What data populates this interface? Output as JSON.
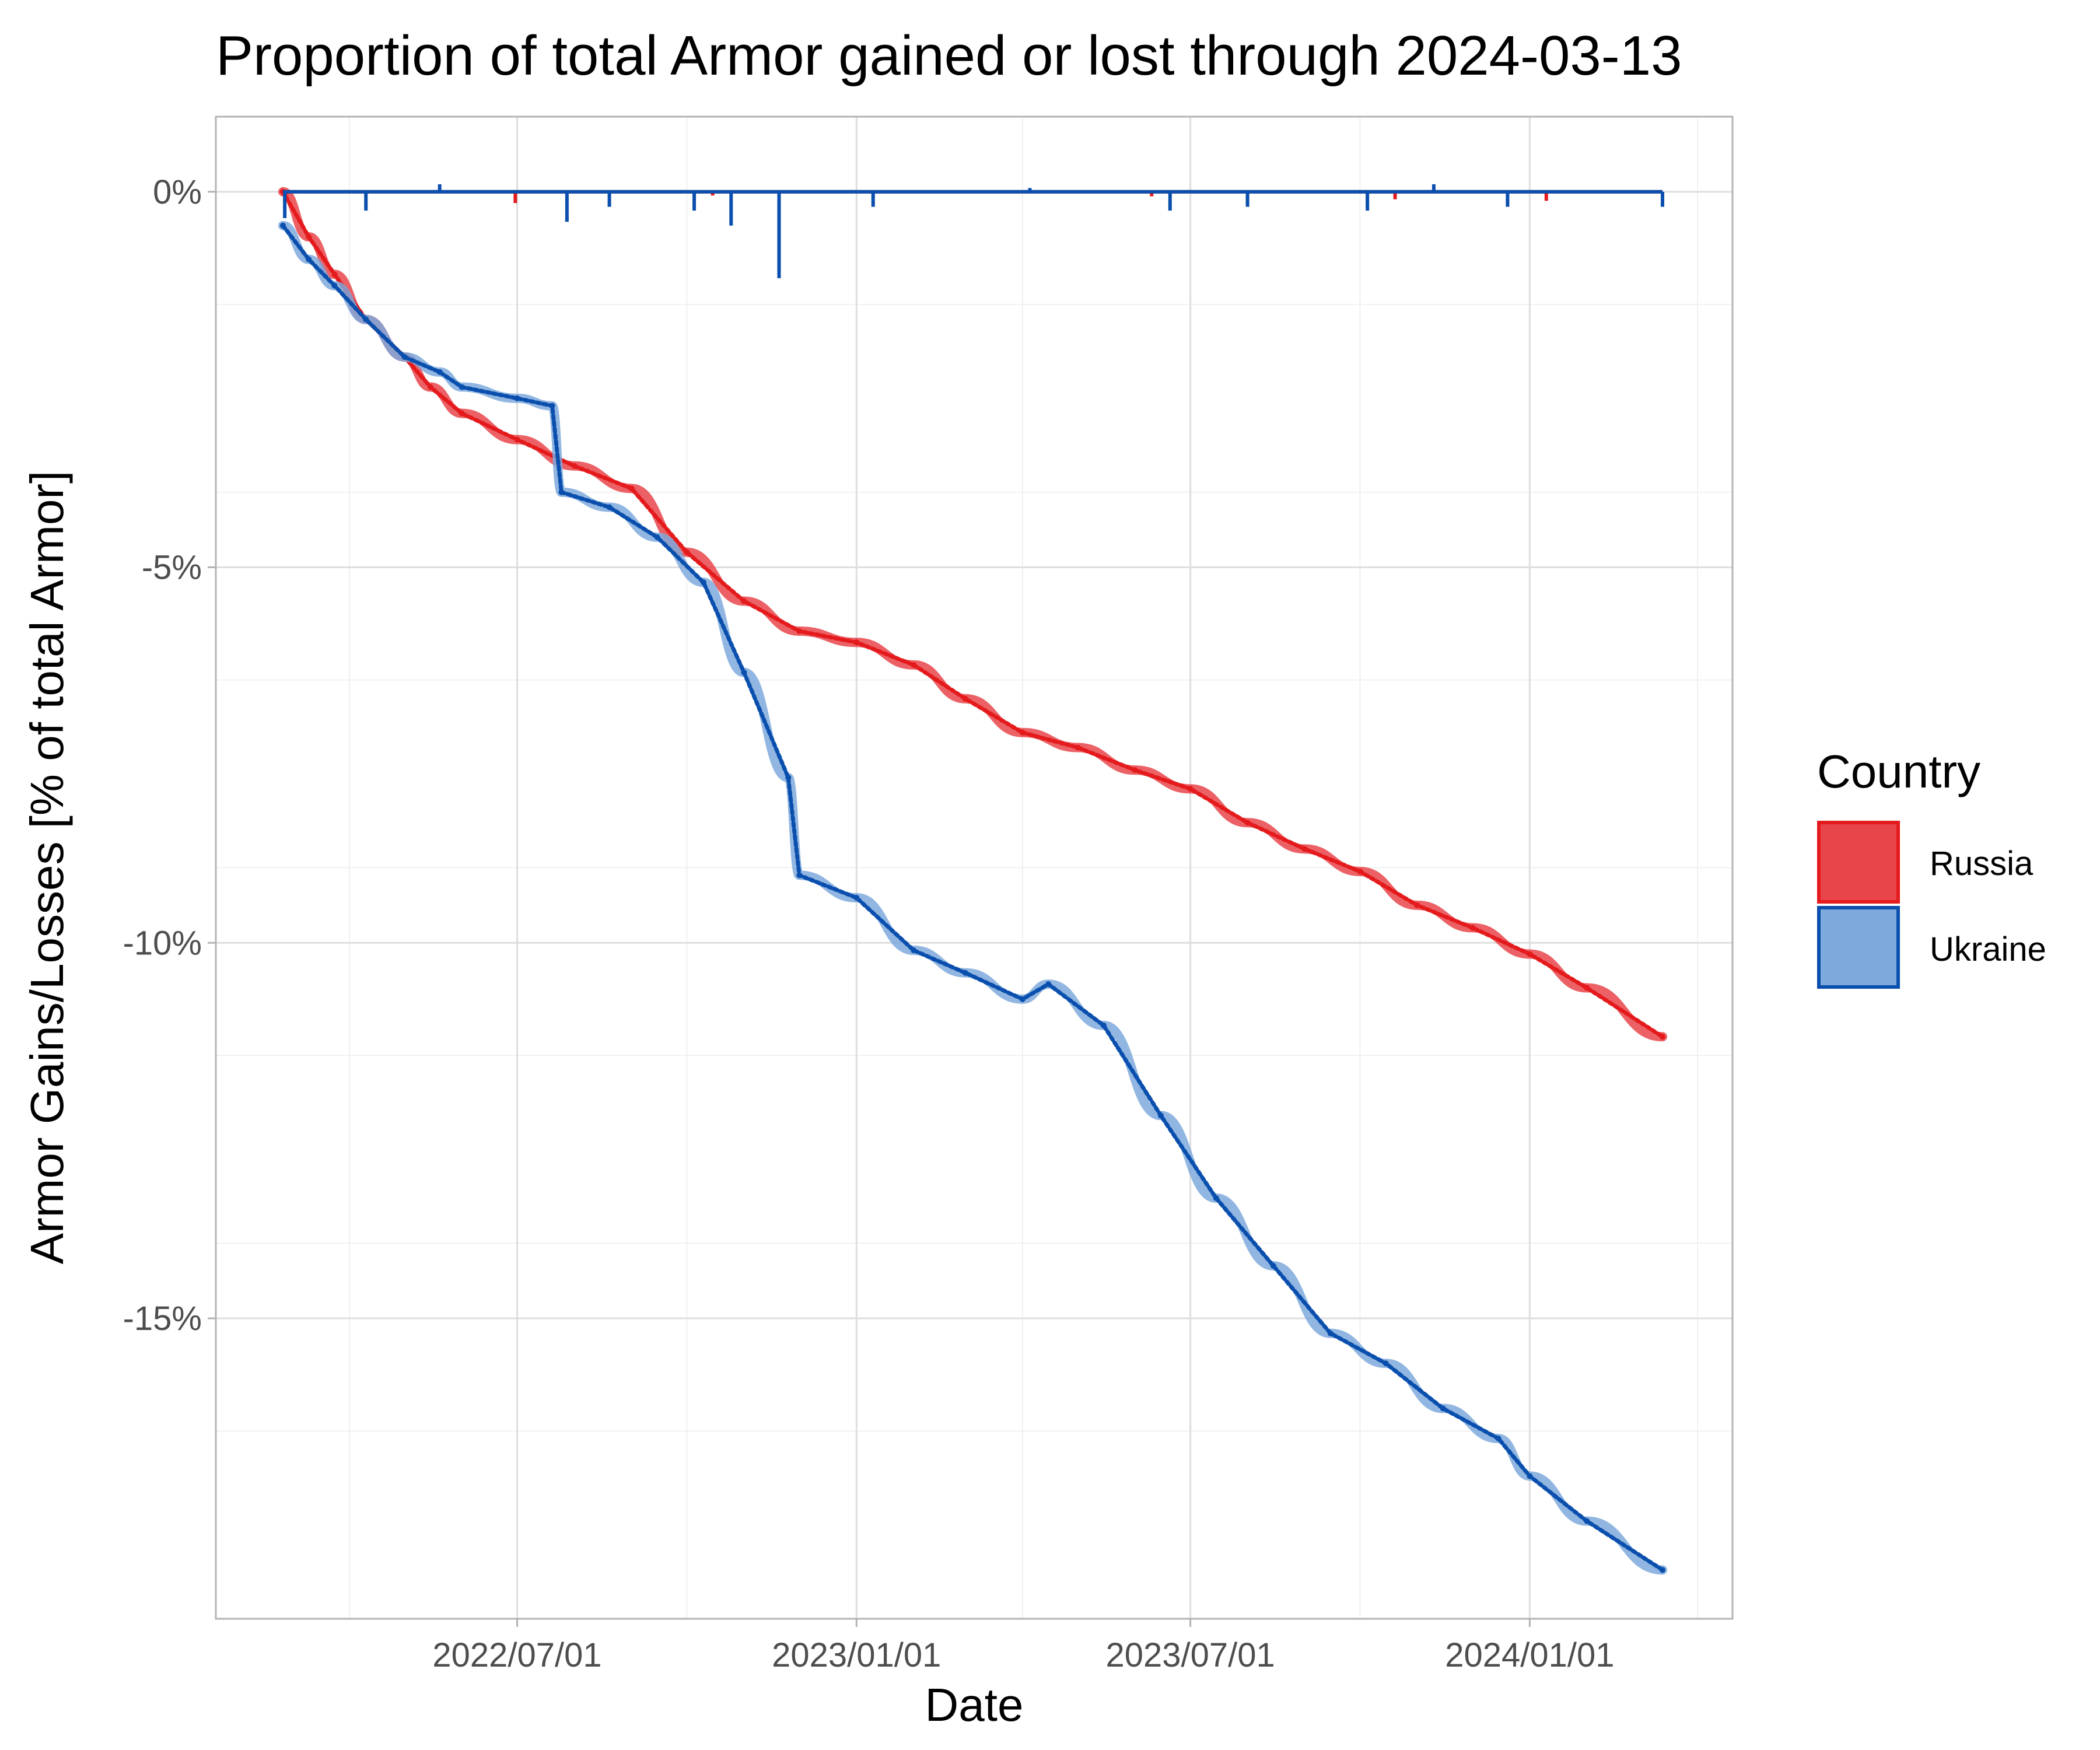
{
  "chart_data": {
    "type": "line",
    "title": "Proportion of total Armor gained or lost through 2024-03-13",
    "xlabel": "Date",
    "ylabel": "Armor Gains/Losses [% of total Armor]",
    "xlim": [
      "2022-02-24",
      "2024-03-13"
    ],
    "ylim": [
      -19.0,
      1.0
    ],
    "x_ticks": [
      "2022/07/01",
      "2023/01/01",
      "2023/07/01",
      "2024/01/01"
    ],
    "y_ticks": [
      {
        "value": 0,
        "label": "0%"
      },
      {
        "value": -5,
        "label": "-5%"
      },
      {
        "value": -10,
        "label": "-10%"
      },
      {
        "value": -15,
        "label": "-15%"
      }
    ],
    "grid": true,
    "legend": {
      "title": "Country",
      "position": "right"
    },
    "series": [
      {
        "name": "Russia",
        "color": "#e41a1c",
        "smooth_color": "#e8454a",
        "cumulative": [
          {
            "x": "2022-02-24",
            "y": 0.0
          },
          {
            "x": "2022-03-10",
            "y": -0.6
          },
          {
            "x": "2022-03-24",
            "y": -1.1
          },
          {
            "x": "2022-04-10",
            "y": -1.7
          },
          {
            "x": "2022-05-01",
            "y": -2.2
          },
          {
            "x": "2022-05-15",
            "y": -2.6
          },
          {
            "x": "2022-06-01",
            "y": -2.95
          },
          {
            "x": "2022-07-01",
            "y": -3.3
          },
          {
            "x": "2022-08-01",
            "y": -3.65
          },
          {
            "x": "2022-09-01",
            "y": -3.95
          },
          {
            "x": "2022-10-01",
            "y": -4.8
          },
          {
            "x": "2022-11-01",
            "y": -5.45
          },
          {
            "x": "2022-12-01",
            "y": -5.85
          },
          {
            "x": "2023-01-01",
            "y": -6.0
          },
          {
            "x": "2023-02-01",
            "y": -6.3
          },
          {
            "x": "2023-03-01",
            "y": -6.75
          },
          {
            "x": "2023-04-01",
            "y": -7.2
          },
          {
            "x": "2023-05-01",
            "y": -7.4
          },
          {
            "x": "2023-06-01",
            "y": -7.7
          },
          {
            "x": "2023-07-01",
            "y": -7.95
          },
          {
            "x": "2023-08-01",
            "y": -8.4
          },
          {
            "x": "2023-09-01",
            "y": -8.75
          },
          {
            "x": "2023-10-01",
            "y": -9.05
          },
          {
            "x": "2023-11-01",
            "y": -9.5
          },
          {
            "x": "2023-12-01",
            "y": -9.8
          },
          {
            "x": "2024-01-01",
            "y": -10.15
          },
          {
            "x": "2024-02-01",
            "y": -10.6
          },
          {
            "x": "2024-03-13",
            "y": -11.25
          }
        ],
        "daily_spikes": [
          {
            "x": "2022-02-26",
            "y": -0.08
          },
          {
            "x": "2022-06-30",
            "y": -0.15
          },
          {
            "x": "2022-10-15",
            "y": -0.05
          },
          {
            "x": "2023-06-10",
            "y": -0.06
          },
          {
            "x": "2023-10-20",
            "y": -0.1
          },
          {
            "x": "2024-01-10",
            "y": -0.12
          }
        ]
      },
      {
        "name": "Ukraine",
        "color": "#0a4fad",
        "smooth_color": "#7ea9dc",
        "cumulative": [
          {
            "x": "2022-02-24",
            "y": -0.45
          },
          {
            "x": "2022-03-10",
            "y": -0.9
          },
          {
            "x": "2022-03-24",
            "y": -1.25
          },
          {
            "x": "2022-04-10",
            "y": -1.7
          },
          {
            "x": "2022-05-01",
            "y": -2.2
          },
          {
            "x": "2022-05-20",
            "y": -2.4
          },
          {
            "x": "2022-06-01",
            "y": -2.6
          },
          {
            "x": "2022-07-01",
            "y": -2.75
          },
          {
            "x": "2022-07-20",
            "y": -2.85
          },
          {
            "x": "2022-07-25",
            "y": -4.0
          },
          {
            "x": "2022-08-20",
            "y": -4.2
          },
          {
            "x": "2022-09-15",
            "y": -4.6
          },
          {
            "x": "2022-10-10",
            "y": -5.2
          },
          {
            "x": "2022-11-01",
            "y": -6.4
          },
          {
            "x": "2022-11-25",
            "y": -7.8
          },
          {
            "x": "2022-12-01",
            "y": -9.1
          },
          {
            "x": "2023-01-01",
            "y": -9.4
          },
          {
            "x": "2023-02-01",
            "y": -10.1
          },
          {
            "x": "2023-03-01",
            "y": -10.4
          },
          {
            "x": "2023-04-01",
            "y": -10.75
          },
          {
            "x": "2023-04-15",
            "y": -10.55
          },
          {
            "x": "2023-05-15",
            "y": -11.1
          },
          {
            "x": "2023-06-15",
            "y": -12.3
          },
          {
            "x": "2023-07-15",
            "y": -13.4
          },
          {
            "x": "2023-08-15",
            "y": -14.3
          },
          {
            "x": "2023-09-15",
            "y": -15.2
          },
          {
            "x": "2023-10-15",
            "y": -15.6
          },
          {
            "x": "2023-11-15",
            "y": -16.2
          },
          {
            "x": "2023-12-15",
            "y": -16.6
          },
          {
            "x": "2024-01-01",
            "y": -17.1
          },
          {
            "x": "2024-02-01",
            "y": -17.7
          },
          {
            "x": "2024-03-13",
            "y": -18.35
          }
        ],
        "daily_spikes": [
          {
            "x": "2022-02-25",
            "y": -0.35
          },
          {
            "x": "2022-04-10",
            "y": -0.25
          },
          {
            "x": "2022-05-20",
            "y": 0.1
          },
          {
            "x": "2022-07-28",
            "y": -0.4
          },
          {
            "x": "2022-08-20",
            "y": -0.2
          },
          {
            "x": "2022-10-05",
            "y": -0.25
          },
          {
            "x": "2022-10-25",
            "y": -0.45
          },
          {
            "x": "2022-11-20",
            "y": -1.15
          },
          {
            "x": "2023-01-10",
            "y": -0.2
          },
          {
            "x": "2023-04-05",
            "y": 0.05
          },
          {
            "x": "2023-06-20",
            "y": -0.25
          },
          {
            "x": "2023-08-01",
            "y": -0.2
          },
          {
            "x": "2023-10-05",
            "y": -0.25
          },
          {
            "x": "2023-11-10",
            "y": 0.1
          },
          {
            "x": "2023-12-20",
            "y": -0.2
          },
          {
            "x": "2024-03-13",
            "y": -0.2
          }
        ]
      }
    ]
  }
}
